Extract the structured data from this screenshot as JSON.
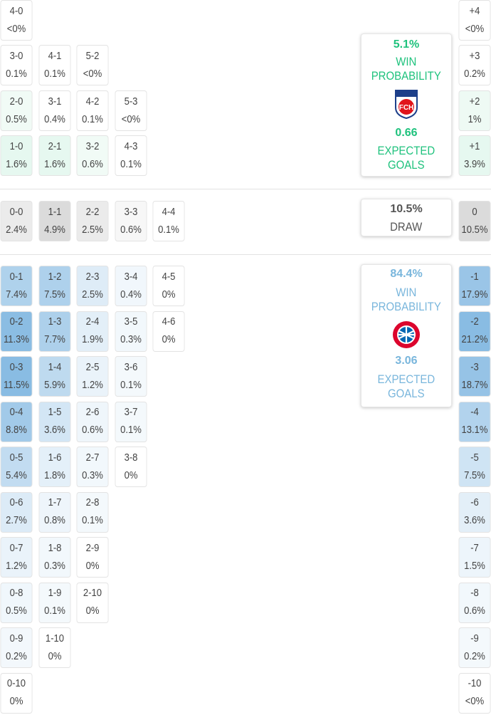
{
  "home": {
    "win_pct": "5.1%",
    "win_label": "WIN\nPROBABILITY",
    "xg": "0.66",
    "xg_label": "EXPECTED\nGOALS",
    "logo_text": "FCH",
    "color": "#1fc27d"
  },
  "draw": {
    "pct": "10.5%",
    "label": "DRAW"
  },
  "away": {
    "win_pct": "84.4%",
    "win_label": "WIN\nPROBABILITY",
    "xg": "3.06",
    "xg_label": "EXPECTED\nGOALS",
    "color": "#79b6dc"
  },
  "home_rows": [
    [
      {
        "score": "4-0",
        "pct": "<0%"
      }
    ],
    [
      {
        "score": "3-0",
        "pct": "0.1%"
      },
      {
        "score": "4-1",
        "pct": "0.1%"
      },
      {
        "score": "5-2",
        "pct": "<0%"
      }
    ],
    [
      {
        "score": "2-0",
        "pct": "0.5%"
      },
      {
        "score": "3-1",
        "pct": "0.4%"
      },
      {
        "score": "4-2",
        "pct": "0.1%"
      },
      {
        "score": "5-3",
        "pct": "<0%"
      }
    ],
    [
      {
        "score": "1-0",
        "pct": "1.6%"
      },
      {
        "score": "2-1",
        "pct": "1.6%"
      },
      {
        "score": "3-2",
        "pct": "0.6%"
      },
      {
        "score": "4-3",
        "pct": "0.1%"
      }
    ]
  ],
  "draw_row": [
    {
      "score": "0-0",
      "pct": "2.4%"
    },
    {
      "score": "1-1",
      "pct": "4.9%"
    },
    {
      "score": "2-2",
      "pct": "2.5%"
    },
    {
      "score": "3-3",
      "pct": "0.6%"
    },
    {
      "score": "4-4",
      "pct": "0.1%"
    }
  ],
  "away_rows": [
    [
      {
        "score": "0-1",
        "pct": "7.4%"
      },
      {
        "score": "1-2",
        "pct": "7.5%"
      },
      {
        "score": "2-3",
        "pct": "2.5%"
      },
      {
        "score": "3-4",
        "pct": "0.4%"
      },
      {
        "score": "4-5",
        "pct": "0%"
      }
    ],
    [
      {
        "score": "0-2",
        "pct": "11.3%"
      },
      {
        "score": "1-3",
        "pct": "7.7%"
      },
      {
        "score": "2-4",
        "pct": "1.9%"
      },
      {
        "score": "3-5",
        "pct": "0.3%"
      },
      {
        "score": "4-6",
        "pct": "0%"
      }
    ],
    [
      {
        "score": "0-3",
        "pct": "11.5%"
      },
      {
        "score": "1-4",
        "pct": "5.9%"
      },
      {
        "score": "2-5",
        "pct": "1.2%"
      },
      {
        "score": "3-6",
        "pct": "0.1%"
      }
    ],
    [
      {
        "score": "0-4",
        "pct": "8.8%"
      },
      {
        "score": "1-5",
        "pct": "3.6%"
      },
      {
        "score": "2-6",
        "pct": "0.6%"
      },
      {
        "score": "3-7",
        "pct": "0.1%"
      }
    ],
    [
      {
        "score": "0-5",
        "pct": "5.4%"
      },
      {
        "score": "1-6",
        "pct": "1.8%"
      },
      {
        "score": "2-7",
        "pct": "0.3%"
      },
      {
        "score": "3-8",
        "pct": "0%"
      }
    ],
    [
      {
        "score": "0-6",
        "pct": "2.7%"
      },
      {
        "score": "1-7",
        "pct": "0.8%"
      },
      {
        "score": "2-8",
        "pct": "0.1%"
      }
    ],
    [
      {
        "score": "0-7",
        "pct": "1.2%"
      },
      {
        "score": "1-8",
        "pct": "0.3%"
      },
      {
        "score": "2-9",
        "pct": "0%"
      }
    ],
    [
      {
        "score": "0-8",
        "pct": "0.5%"
      },
      {
        "score": "1-9",
        "pct": "0.1%"
      },
      {
        "score": "2-10",
        "pct": "0%"
      }
    ],
    [
      {
        "score": "0-9",
        "pct": "0.2%"
      },
      {
        "score": "1-10",
        "pct": "0%"
      }
    ],
    [
      {
        "score": "0-10",
        "pct": "0%"
      }
    ]
  ],
  "margins": {
    "home": [
      {
        "m": "+4",
        "pct": "<0%"
      },
      {
        "m": "+3",
        "pct": "0.2%"
      },
      {
        "m": "+2",
        "pct": "1%"
      },
      {
        "m": "+1",
        "pct": "3.9%"
      }
    ],
    "draw": {
      "m": "0",
      "pct": "10.5%"
    },
    "away": [
      {
        "m": "-1",
        "pct": "17.9%"
      },
      {
        "m": "-2",
        "pct": "21.2%"
      },
      {
        "m": "-3",
        "pct": "18.7%"
      },
      {
        "m": "-4",
        "pct": "13.1%"
      },
      {
        "m": "-5",
        "pct": "7.5%"
      },
      {
        "m": "-6",
        "pct": "3.6%"
      },
      {
        "m": "-7",
        "pct": "1.5%"
      },
      {
        "m": "-8",
        "pct": "0.6%"
      },
      {
        "m": "-9",
        "pct": "0.2%"
      },
      {
        "m": "-10",
        "pct": "<0%"
      }
    ]
  },
  "colors": {
    "green_tint": "#31c37f",
    "blue_tint": "#3a8fd0",
    "draw_gray": "#bdbdbd"
  }
}
